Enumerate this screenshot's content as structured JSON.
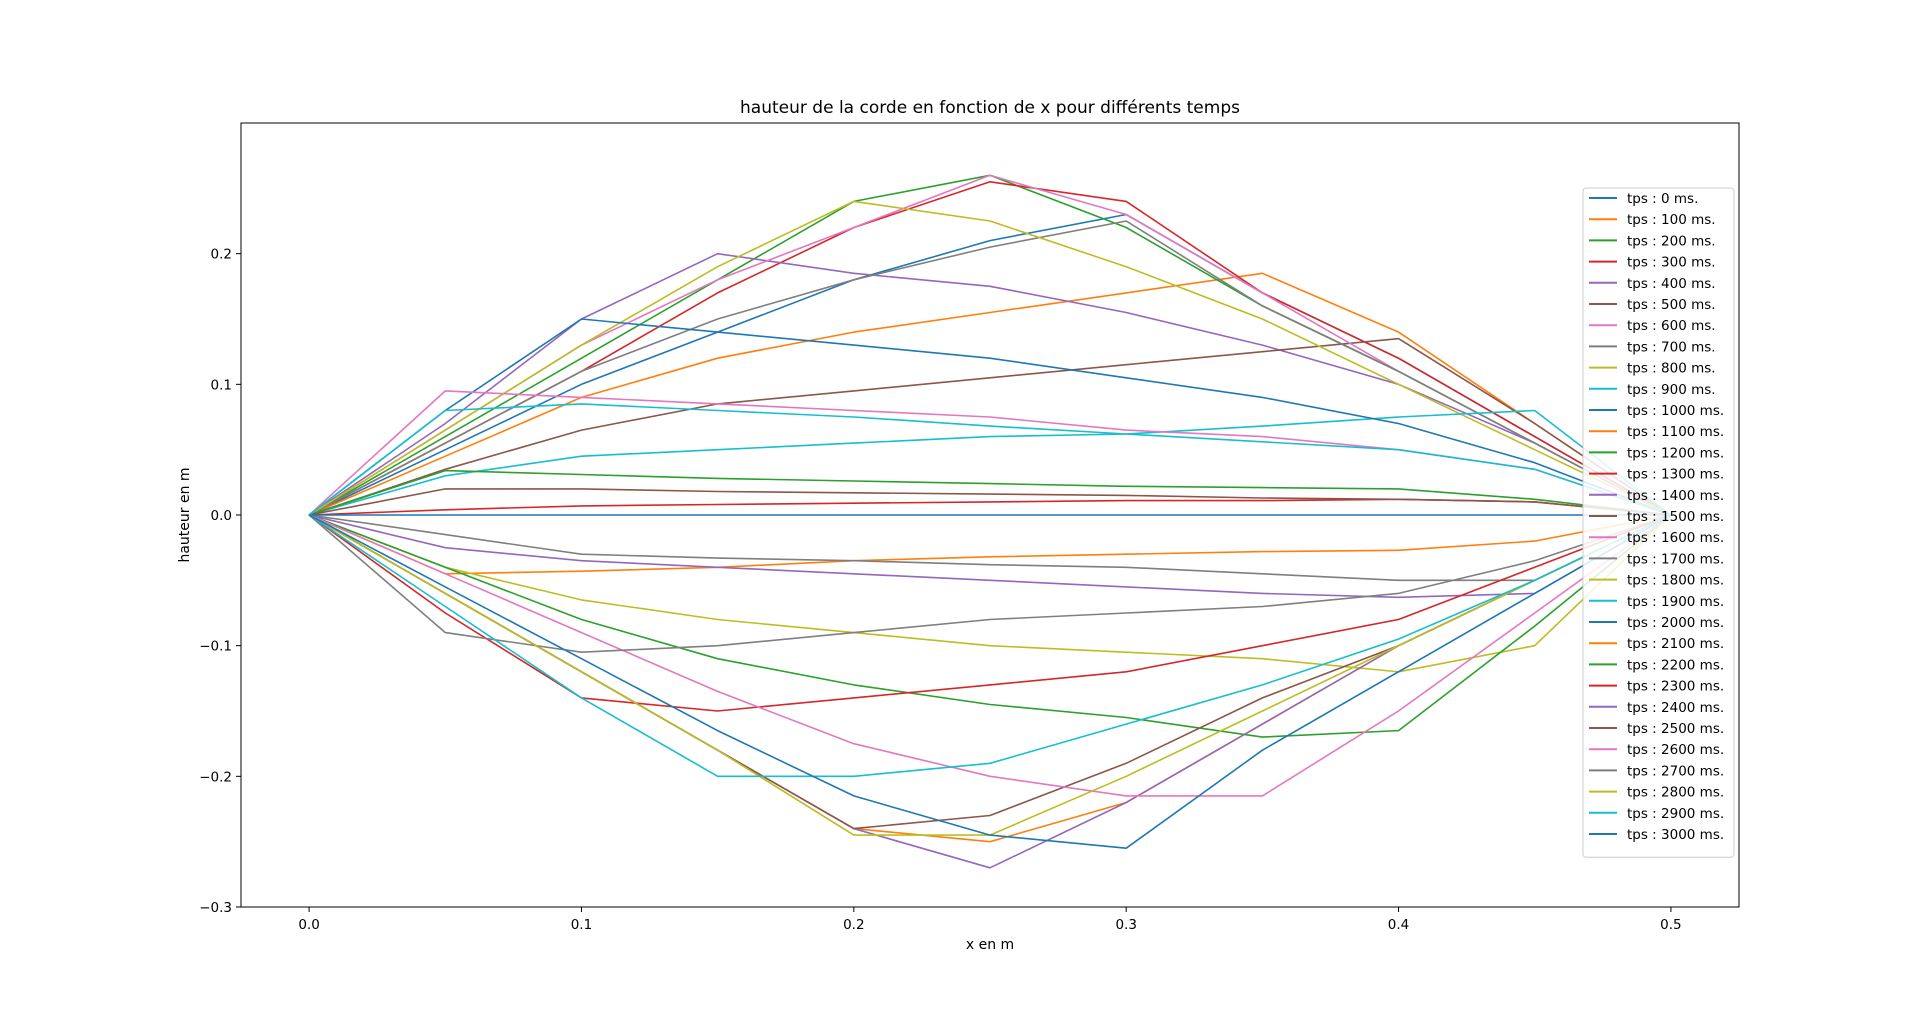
{
  "chart_data": {
    "type": "line",
    "title": "hauteur de la corde en fonction de x pour différents temps",
    "xlabel": "x en m",
    "ylabel": "hauteur en m",
    "xlim": [
      -0.025,
      0.525
    ],
    "ylim": [
      -0.3,
      0.3
    ],
    "xticks": [
      "0.0",
      "0.1",
      "0.2",
      "0.3",
      "0.4",
      "0.5"
    ],
    "yticks": [
      "−0.3",
      "−0.2",
      "−0.1",
      "0.0",
      "0.1",
      "0.2"
    ],
    "grid": false,
    "legend_position": "right",
    "x": [
      0,
      0.05,
      0.1,
      0.15,
      0.2,
      0.25,
      0.3,
      0.35,
      0.4,
      0.45,
      0.5
    ],
    "series": [
      {
        "name": "tps : 0 ms.",
        "color": "#1f77b4",
        "values": [
          0,
          0.05,
          0.1,
          0.14,
          0.18,
          0.21,
          0.23,
          0.17,
          0.12,
          0.06,
          0
        ]
      },
      {
        "name": "tps : 100 ms.",
        "color": "#ff7f0e",
        "values": [
          0,
          0.045,
          0.09,
          0.12,
          0.14,
          0.155,
          0.17,
          0.185,
          0.14,
          0.07,
          0
        ]
      },
      {
        "name": "tps : 200 ms.",
        "color": "#2ca02c",
        "values": [
          0,
          0.06,
          0.12,
          0.18,
          0.24,
          0.26,
          0.22,
          0.16,
          0.11,
          0.055,
          0
        ]
      },
      {
        "name": "tps : 300 ms.",
        "color": "#d62728",
        "values": [
          0,
          0.055,
          0.11,
          0.17,
          0.22,
          0.255,
          0.24,
          0.17,
          0.12,
          0.06,
          0
        ]
      },
      {
        "name": "tps : 400 ms.",
        "color": "#9467bd",
        "values": [
          0,
          0.07,
          0.15,
          0.2,
          0.185,
          0.175,
          0.155,
          0.13,
          0.1,
          0.055,
          0
        ]
      },
      {
        "name": "tps : 500 ms.",
        "color": "#8c564b",
        "values": [
          0,
          0.035,
          0.065,
          0.085,
          0.095,
          0.105,
          0.115,
          0.125,
          0.135,
          0.07,
          0
        ]
      },
      {
        "name": "tps : 600 ms.",
        "color": "#e377c2",
        "values": [
          0,
          0.065,
          0.13,
          0.18,
          0.22,
          0.26,
          0.23,
          0.17,
          0.11,
          0.055,
          0
        ]
      },
      {
        "name": "tps : 700 ms.",
        "color": "#7f7f7f",
        "values": [
          0,
          0.055,
          0.11,
          0.15,
          0.18,
          0.205,
          0.225,
          0.16,
          0.11,
          0.055,
          0
        ]
      },
      {
        "name": "tps : 800 ms.",
        "color": "#bcbd22",
        "values": [
          0,
          0.065,
          0.13,
          0.19,
          0.24,
          0.225,
          0.19,
          0.15,
          0.1,
          0.05,
          0
        ]
      },
      {
        "name": "tps : 900 ms.",
        "color": "#17becf",
        "values": [
          0,
          0.03,
          0.045,
          0.05,
          0.055,
          0.06,
          0.062,
          0.068,
          0.075,
          0.08,
          0
        ]
      },
      {
        "name": "tps : 1000 ms.",
        "color": "#1f77b4",
        "values": [
          0,
          0.08,
          0.15,
          0.14,
          0.13,
          0.12,
          0.105,
          0.09,
          0.07,
          0.04,
          0
        ]
      },
      {
        "name": "tps : 1100 ms.",
        "color": "#ff7f0e",
        "values": [
          0,
          -0.045,
          -0.043,
          -0.04,
          -0.035,
          -0.032,
          -0.03,
          -0.028,
          -0.027,
          -0.02,
          0
        ]
      },
      {
        "name": "tps : 1200 ms.",
        "color": "#2ca02c",
        "values": [
          0,
          0.034,
          0.031,
          0.028,
          0.026,
          0.024,
          0.022,
          0.021,
          0.02,
          0.012,
          0
        ]
      },
      {
        "name": "tps : 1300 ms.",
        "color": "#d62728",
        "values": [
          0,
          0.004,
          0.007,
          0.008,
          0.009,
          0.01,
          0.011,
          0.011,
          0.012,
          0.01,
          0
        ]
      },
      {
        "name": "tps : 1400 ms.",
        "color": "#9467bd",
        "values": [
          0,
          -0.025,
          -0.035,
          -0.04,
          -0.045,
          -0.05,
          -0.055,
          -0.06,
          -0.063,
          -0.06,
          0
        ]
      },
      {
        "name": "tps : 1500 ms.",
        "color": "#8c564b",
        "values": [
          0,
          0.02,
          0.02,
          0.018,
          0.017,
          0.016,
          0.015,
          0.013,
          0.012,
          0.01,
          0
        ]
      },
      {
        "name": "tps : 1600 ms.",
        "color": "#e377c2",
        "values": [
          0,
          0.095,
          0.09,
          0.085,
          0.08,
          0.075,
          0.065,
          0.06,
          0.05,
          0.035,
          0
        ]
      },
      {
        "name": "tps : 1700 ms.",
        "color": "#7f7f7f",
        "values": [
          0,
          -0.015,
          -0.03,
          -0.033,
          -0.035,
          -0.038,
          -0.04,
          -0.045,
          -0.05,
          -0.05,
          0
        ]
      },
      {
        "name": "tps : 1800 ms.",
        "color": "#bcbd22",
        "values": [
          0,
          -0.04,
          -0.065,
          -0.08,
          -0.09,
          -0.1,
          -0.105,
          -0.11,
          -0.12,
          -0.1,
          0
        ]
      },
      {
        "name": "tps : 1900 ms.",
        "color": "#17becf",
        "values": [
          0,
          0.08,
          0.085,
          0.08,
          0.075,
          0.068,
          0.062,
          0.056,
          0.05,
          0.035,
          0
        ]
      },
      {
        "name": "tps : 2000 ms.",
        "color": "#1f77b4",
        "values": [
          0,
          0,
          0,
          0,
          0,
          0,
          0,
          0,
          0,
          0,
          0
        ]
      },
      {
        "name": "tps : 2100 ms.",
        "color": "#ff7f0e",
        "values": [
          0,
          -0.06,
          -0.12,
          -0.18,
          -0.24,
          -0.25,
          -0.22,
          -0.16,
          -0.1,
          -0.05,
          0
        ]
      },
      {
        "name": "tps : 2200 ms.",
        "color": "#2ca02c",
        "values": [
          0,
          -0.04,
          -0.08,
          -0.11,
          -0.13,
          -0.145,
          -0.155,
          -0.17,
          -0.165,
          -0.085,
          0
        ]
      },
      {
        "name": "tps : 2300 ms.",
        "color": "#d62728",
        "values": [
          0,
          -0.075,
          -0.14,
          -0.15,
          -0.14,
          -0.13,
          -0.12,
          -0.1,
          -0.08,
          -0.04,
          0
        ]
      },
      {
        "name": "tps : 2400 ms.",
        "color": "#9467bd",
        "values": [
          0,
          -0.06,
          -0.12,
          -0.18,
          -0.24,
          -0.27,
          -0.22,
          -0.16,
          -0.1,
          -0.05,
          0
        ]
      },
      {
        "name": "tps : 2500 ms.",
        "color": "#8c564b",
        "values": [
          0,
          -0.06,
          -0.12,
          -0.18,
          -0.24,
          -0.23,
          -0.19,
          -0.14,
          -0.1,
          -0.05,
          0
        ]
      },
      {
        "name": "tps : 2600 ms.",
        "color": "#e377c2",
        "values": [
          0,
          -0.045,
          -0.09,
          -0.135,
          -0.175,
          -0.2,
          -0.215,
          -0.215,
          -0.15,
          -0.075,
          0
        ]
      },
      {
        "name": "tps : 2700 ms.",
        "color": "#7f7f7f",
        "values": [
          0,
          -0.09,
          -0.105,
          -0.1,
          -0.09,
          -0.08,
          -0.075,
          -0.07,
          -0.06,
          -0.035,
          0
        ]
      },
      {
        "name": "tps : 2800 ms.",
        "color": "#bcbd22",
        "values": [
          0,
          -0.06,
          -0.12,
          -0.18,
          -0.245,
          -0.245,
          -0.2,
          -0.15,
          -0.1,
          -0.05,
          0
        ]
      },
      {
        "name": "tps : 2900 ms.",
        "color": "#17becf",
        "values": [
          0,
          -0.07,
          -0.14,
          -0.2,
          -0.2,
          -0.19,
          -0.16,
          -0.13,
          -0.095,
          -0.05,
          0
        ]
      },
      {
        "name": "tps : 3000 ms.",
        "color": "#1f77b4",
        "values": [
          0,
          -0.055,
          -0.11,
          -0.165,
          -0.215,
          -0.245,
          -0.255,
          -0.18,
          -0.12,
          -0.06,
          0
        ]
      }
    ]
  }
}
